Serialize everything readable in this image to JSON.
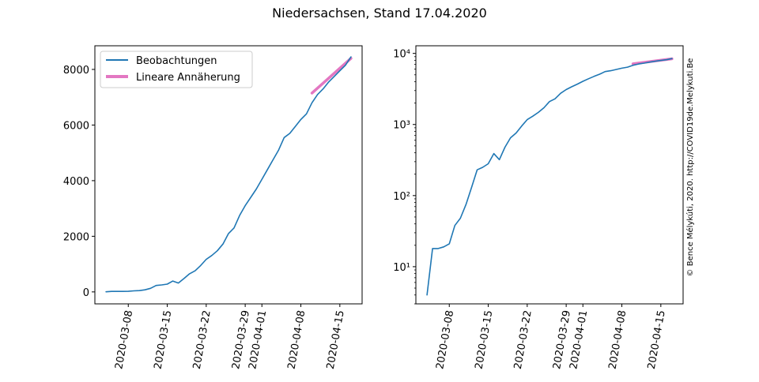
{
  "title": "Niedersachsen, Stand 17.04.2020",
  "watermark": "© Bence Mélykúti, 2020. http://COVID19de.Melykuti.Be",
  "colors": {
    "observed": "#1f77b4",
    "fit": "#e377c2",
    "watermark": "#c8c8c8"
  },
  "chart_data": [
    {
      "type": "line",
      "scale": "linear",
      "x_ticks": [
        "2020-03-08",
        "2020-03-15",
        "2020-03-22",
        "2020-03-29",
        "2020-04-01",
        "2020-04-08",
        "2020-04-15"
      ],
      "y_ticks": [
        "0",
        "2000",
        "4000",
        "6000",
        "8000"
      ],
      "xlim": [
        "2020-03-02",
        "2020-04-19"
      ],
      "ylim": [
        -430,
        8850
      ],
      "legend": {
        "placement": "top-left",
        "entries": [
          "Beobachtungen",
          "Lineare Annäherung"
        ]
      },
      "series": [
        {
          "name": "Beobachtungen",
          "x": [
            "2020-03-04",
            "2020-03-05",
            "2020-03-06",
            "2020-03-07",
            "2020-03-08",
            "2020-03-09",
            "2020-03-10",
            "2020-03-11",
            "2020-03-12",
            "2020-03-13",
            "2020-03-14",
            "2020-03-15",
            "2020-03-16",
            "2020-03-17",
            "2020-03-18",
            "2020-03-19",
            "2020-03-20",
            "2020-03-21",
            "2020-03-22",
            "2020-03-23",
            "2020-03-24",
            "2020-03-25",
            "2020-03-26",
            "2020-03-27",
            "2020-03-28",
            "2020-03-29",
            "2020-03-30",
            "2020-03-31",
            "2020-04-01",
            "2020-04-02",
            "2020-04-03",
            "2020-04-04",
            "2020-04-05",
            "2020-04-06",
            "2020-04-07",
            "2020-04-08",
            "2020-04-09",
            "2020-04-10",
            "2020-04-11",
            "2020-04-12",
            "2020-04-13",
            "2020-04-14",
            "2020-04-15",
            "2020-04-16",
            "2020-04-17"
          ],
          "values": [
            4,
            18,
            18,
            19,
            21,
            38,
            48,
            75,
            130,
            230,
            250,
            280,
            390,
            320,
            480,
            650,
            760,
            950,
            1170,
            1310,
            1480,
            1720,
            2100,
            2300,
            2750,
            3100,
            3400,
            3700,
            4050,
            4400,
            4750,
            5100,
            5550,
            5700,
            5950,
            6200,
            6400,
            6800,
            7100,
            7300,
            7550,
            7750,
            7950,
            8150,
            8450
          ]
        },
        {
          "name": "Lineare Annäherung",
          "x": [
            "2020-04-10",
            "2020-04-17"
          ],
          "values": [
            7150,
            8400
          ]
        }
      ]
    },
    {
      "type": "line",
      "scale": "log",
      "x_ticks": [
        "2020-03-08",
        "2020-03-15",
        "2020-03-22",
        "2020-03-29",
        "2020-04-01",
        "2020-04-08",
        "2020-04-15"
      ],
      "y_ticks": [
        "10¹",
        "10²",
        "10³",
        "10⁴"
      ],
      "xlim": [
        "2020-03-02",
        "2020-04-19"
      ],
      "ylim": [
        3.0,
        12800
      ],
      "series": [
        {
          "name": "Beobachtungen",
          "x": [
            "2020-03-04",
            "2020-03-05",
            "2020-03-06",
            "2020-03-07",
            "2020-03-08",
            "2020-03-09",
            "2020-03-10",
            "2020-03-11",
            "2020-03-12",
            "2020-03-13",
            "2020-03-14",
            "2020-03-15",
            "2020-03-16",
            "2020-03-17",
            "2020-03-18",
            "2020-03-19",
            "2020-03-20",
            "2020-03-21",
            "2020-03-22",
            "2020-03-23",
            "2020-03-24",
            "2020-03-25",
            "2020-03-26",
            "2020-03-27",
            "2020-03-28",
            "2020-03-29",
            "2020-03-30",
            "2020-03-31",
            "2020-04-01",
            "2020-04-02",
            "2020-04-03",
            "2020-04-04",
            "2020-04-05",
            "2020-04-06",
            "2020-04-07",
            "2020-04-08",
            "2020-04-09",
            "2020-04-10",
            "2020-04-11",
            "2020-04-12",
            "2020-04-13",
            "2020-04-14",
            "2020-04-15",
            "2020-04-16",
            "2020-04-17"
          ],
          "values": [
            4,
            18,
            18,
            19,
            21,
            38,
            48,
            75,
            130,
            230,
            250,
            280,
            390,
            320,
            480,
            650,
            760,
            950,
            1170,
            1310,
            1480,
            1720,
            2100,
            2300,
            2750,
            3100,
            3400,
            3700,
            4050,
            4400,
            4750,
            5100,
            5550,
            5700,
            5950,
            6200,
            6400,
            6800,
            7100,
            7300,
            7550,
            7750,
            7950,
            8150,
            8450
          ]
        },
        {
          "name": "Lineare Annäherung",
          "x": [
            "2020-04-10",
            "2020-04-17"
          ],
          "values": [
            7150,
            8400
          ]
        }
      ]
    }
  ]
}
